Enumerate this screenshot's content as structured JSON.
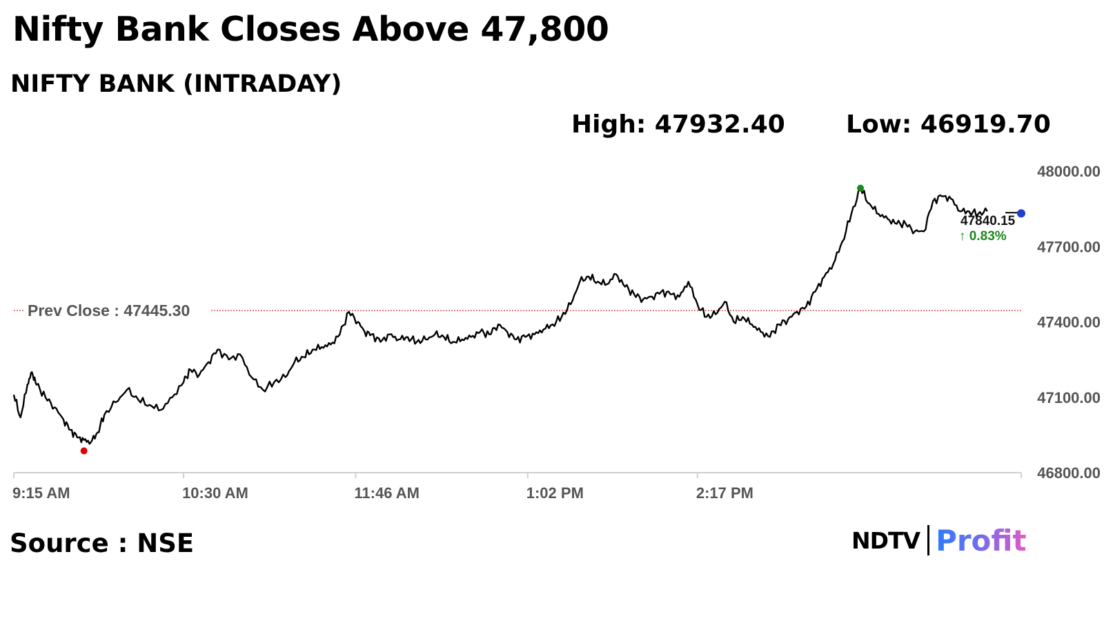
{
  "headline": "Nifty Bank Closes Above 47,800",
  "chart_data": {
    "type": "line",
    "title": "NIFTY BANK (INTRADAY)",
    "high_label": "High: 47932.40",
    "low_label": "Low: 46919.70",
    "high": 47932.4,
    "low": 46919.7,
    "ylim": [
      46800,
      48000
    ],
    "y_ticks": [
      "46800.00",
      "47100.00",
      "47400.00",
      "47700.00",
      "48000.00"
    ],
    "x_ticks": [
      "9:15 AM",
      "10:30 AM",
      "11:46 AM",
      "1:02 PM",
      "2:17 PM"
    ],
    "prev_close": 47445.3,
    "prev_close_label": "Prev Close : 47445.30",
    "last_value_label": "47840.15",
    "change_label": "0.83%",
    "change_arrow": "up-arrow-icon",
    "line_color": "#000000",
    "high_marker_color": "#1a8a1a",
    "low_marker_color": "#e00000",
    "last_marker_color": "#1f3fd0",
    "prev_close_color": "#cc0000",
    "series": [
      {
        "x": [
          0,
          3,
          6,
          8,
          10,
          14,
          18,
          22,
          25,
          28,
          31,
          34,
          37,
          40,
          45,
          50,
          55,
          60,
          65,
          70,
          75,
          78,
          82,
          86,
          90,
          95,
          100,
          105,
          110,
          115,
          120,
          124,
          128,
          132,
          136,
          140,
          144,
          148,
          152,
          155,
          158,
          162,
          166,
          170,
          174,
          178,
          182,
          186,
          190,
          194,
          198,
          202,
          206,
          210,
          214,
          218,
          222,
          226,
          230,
          234,
          238,
          242,
          246,
          250,
          254,
          258,
          262,
          266,
          270,
          274,
          278,
          282,
          286,
          290,
          294,
          298,
          302,
          306,
          310,
          314,
          318,
          322,
          326,
          330,
          334,
          338,
          342,
          346,
          350,
          354,
          358,
          362,
          366,
          370,
          374
        ],
        "y": [
          47110,
          47020,
          47150,
          47200,
          47150,
          47100,
          47060,
          47010,
          46970,
          46940,
          46930,
          46920,
          46960,
          47030,
          47080,
          47130,
          47090,
          47070,
          47050,
          47100,
          47160,
          47210,
          47190,
          47240,
          47290,
          47250,
          47270,
          47180,
          47130,
          47160,
          47180,
          47240,
          47260,
          47290,
          47300,
          47310,
          47350,
          47440,
          47400,
          47360,
          47350,
          47320,
          47350,
          47330,
          47340,
          47320,
          47330,
          47350,
          47340,
          47320,
          47330,
          47340,
          47360,
          47350,
          47390,
          47360,
          47330,
          47340,
          47350,
          47370,
          47390,
          47420,
          47470,
          47560,
          47580,
          47560,
          47550,
          47590,
          47540,
          47510,
          47490,
          47500,
          47520,
          47510,
          47500,
          47560,
          47470,
          47420,
          47430,
          47480,
          47400,
          47420,
          47390,
          47360,
          47340,
          47390,
          47410,
          47440,
          47460,
          47520,
          47580,
          47630,
          47720,
          47830,
          47930
        ]
      },
      {
        "x": [
          374,
          378,
          382,
          386,
          390,
          394,
          398,
          402,
          406,
          410,
          414,
          418,
          422,
          426,
          430
        ],
        "y": [
          47930,
          47870,
          47830,
          47810,
          47790,
          47790,
          47760,
          47760,
          47880,
          47900,
          47890,
          47840,
          47840,
          47830,
          47840
        ]
      }
    ],
    "x_max": 445,
    "x_tick_positions": [
      0,
      75,
      151,
      227,
      302
    ]
  }
}
